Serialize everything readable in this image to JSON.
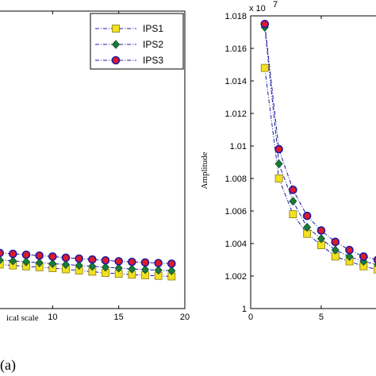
{
  "caption": "(a)",
  "chart_data": [
    {
      "type": "line",
      "panel": "left",
      "xlabel": "ical scale",
      "ylabel": "",
      "xlim": [
        5.3,
        20
      ],
      "xticks": [
        "10",
        "15",
        "20"
      ],
      "xtick_values": [
        10,
        15,
        20
      ],
      "ylim": [
        0,
        1
      ],
      "legend": {
        "placement": "top-right",
        "entries": [
          "IPS1",
          "IPS2",
          "IPS3"
        ]
      },
      "series": [
        {
          "name": "IPS1",
          "color": "#f2e021",
          "marker": "square",
          "x": [
            6,
            7,
            8,
            9,
            10,
            11,
            12,
            13,
            14,
            15,
            16,
            17,
            18,
            19
          ],
          "y": [
            0.148,
            0.145,
            0.142,
            0.139,
            0.136,
            0.132,
            0.128,
            0.124,
            0.12,
            0.117,
            0.114,
            0.112,
            0.11,
            0.108
          ]
        },
        {
          "name": "IPS2",
          "color": "#1a7a3a",
          "marker": "diamond",
          "x": [
            6,
            7,
            8,
            9,
            10,
            11,
            12,
            13,
            14,
            15,
            16,
            17,
            18,
            19
          ],
          "y": [
            0.163,
            0.16,
            0.157,
            0.154,
            0.151,
            0.148,
            0.145,
            0.142,
            0.139,
            0.136,
            0.133,
            0.131,
            0.129,
            0.127
          ]
        },
        {
          "name": "IPS3",
          "color": "#e0192b",
          "marker": "circle",
          "x": [
            6,
            7,
            8,
            9,
            10,
            11,
            12,
            13,
            14,
            15,
            16,
            17,
            18,
            19
          ],
          "y": [
            0.187,
            0.184,
            0.181,
            0.178,
            0.175,
            0.171,
            0.168,
            0.165,
            0.162,
            0.159,
            0.157,
            0.155,
            0.153,
            0.151
          ]
        }
      ]
    },
    {
      "type": "line",
      "panel": "right",
      "xlabel": "",
      "ylabel": "Amplitude",
      "exponent": "x 10",
      "exponent_power": "7",
      "xlim": [
        0,
        9.5
      ],
      "xticks": [
        "0",
        "5"
      ],
      "xtick_values": [
        0,
        5
      ],
      "ylim": [
        1.0,
        1.018
      ],
      "yticks": [
        "1",
        "1.002",
        "1.004",
        "1.006",
        "1.008",
        "1.01",
        "1.012",
        "1.014",
        "1.016",
        "1.018"
      ],
      "ytick_values": [
        1.0,
        1.002,
        1.004,
        1.006,
        1.008,
        1.01,
        1.012,
        1.014,
        1.016,
        1.018
      ],
      "series": [
        {
          "name": "IPS1",
          "color": "#f2e021",
          "marker": "square",
          "x": [
            1,
            2,
            3,
            4,
            5,
            6,
            7,
            8,
            9
          ],
          "y": [
            1.0148,
            1.008,
            1.0058,
            1.0046,
            1.0039,
            1.0032,
            1.0029,
            1.0026,
            1.0024
          ]
        },
        {
          "name": "IPS2",
          "color": "#1a7a3a",
          "marker": "diamond",
          "x": [
            1,
            2,
            3,
            4,
            5,
            6,
            7,
            8,
            9
          ],
          "y": [
            1.0173,
            1.0089,
            1.0066,
            1.005,
            1.0043,
            1.0036,
            1.0032,
            1.0029,
            1.0027
          ]
        },
        {
          "name": "IPS3",
          "color": "#e0192b",
          "marker": "circle",
          "x": [
            1,
            2,
            3,
            4,
            5,
            6,
            7,
            8,
            9
          ],
          "y": [
            1.0175,
            1.0098,
            1.0073,
            1.0057,
            1.0048,
            1.0041,
            1.0036,
            1.0032,
            1.003
          ]
        }
      ]
    }
  ]
}
